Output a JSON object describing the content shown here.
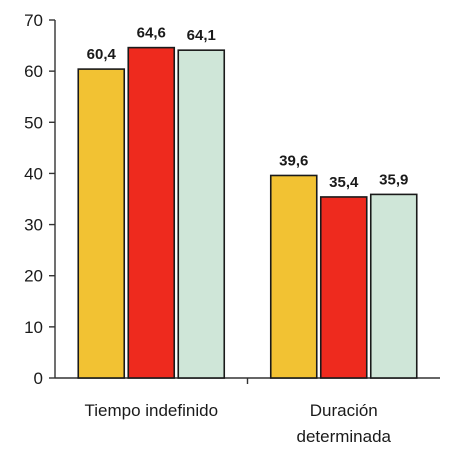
{
  "chart_data": {
    "type": "bar",
    "title": "",
    "xlabel": "",
    "ylabel": "",
    "ylim": [
      0,
      70
    ],
    "yticks": [
      "0",
      "10",
      "20",
      "30",
      "40",
      "50",
      "60",
      "70"
    ],
    "grid": false,
    "legend": "none",
    "categories": [
      [
        "Tiempo indefinido"
      ],
      [
        "Duración",
        "determinada"
      ]
    ],
    "series": [
      {
        "color": "#f2c233",
        "values": [
          60.4,
          39.6
        ],
        "labels": [
          "60,4",
          "39,6"
        ]
      },
      {
        "color": "#ee2a1e",
        "values": [
          64.6,
          35.4
        ],
        "labels": [
          "64,6",
          "35,4"
        ]
      },
      {
        "color": "#cfe6d8",
        "values": [
          64.1,
          35.9
        ],
        "labels": [
          "64,1",
          "35,9"
        ]
      }
    ]
  }
}
